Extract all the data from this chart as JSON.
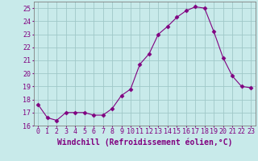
{
  "x": [
    0,
    1,
    2,
    3,
    4,
    5,
    6,
    7,
    8,
    9,
    10,
    11,
    12,
    13,
    14,
    15,
    16,
    17,
    18,
    19,
    20,
    21,
    22,
    23
  ],
  "y": [
    17.6,
    16.6,
    16.4,
    17.0,
    17.0,
    17.0,
    16.8,
    16.8,
    17.3,
    18.3,
    18.8,
    20.7,
    21.5,
    23.0,
    23.6,
    24.3,
    24.8,
    25.1,
    25.0,
    23.2,
    21.2,
    19.8,
    19.0,
    18.9
  ],
  "line_color": "#800080",
  "marker": "D",
  "marker_size": 2.5,
  "bg_color": "#c8eaea",
  "grid_color": "#a0c8c8",
  "xlabel": "Windchill (Refroidissement éolien,°C)",
  "ylabel": "",
  "ylim": [
    16,
    25.5
  ],
  "xlim": [
    -0.5,
    23.5
  ],
  "yticks": [
    16,
    17,
    18,
    19,
    20,
    21,
    22,
    23,
    24,
    25
  ],
  "xticks": [
    0,
    1,
    2,
    3,
    4,
    5,
    6,
    7,
    8,
    9,
    10,
    11,
    12,
    13,
    14,
    15,
    16,
    17,
    18,
    19,
    20,
    21,
    22,
    23
  ],
  "tick_label_color": "#800080",
  "tick_label_fontsize": 6,
  "xlabel_fontsize": 7,
  "spine_color": "#808080"
}
